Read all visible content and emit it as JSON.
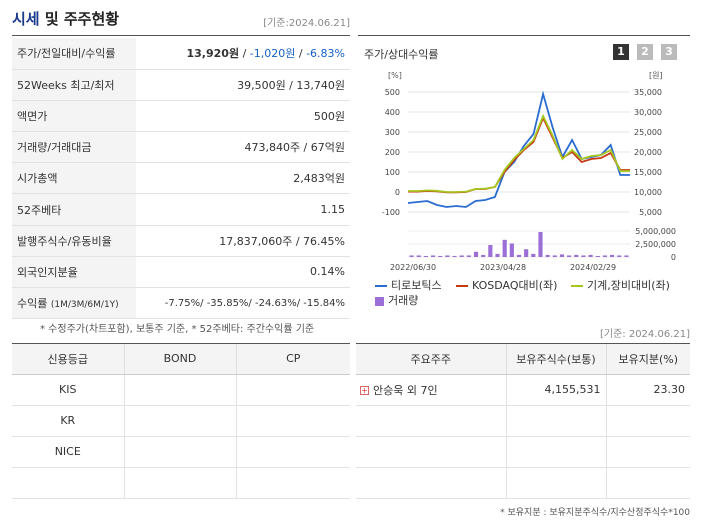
{
  "header": {
    "title_part1": "시세",
    "title_part2": "및 주주현황",
    "base_date": "[기준:2024.06.21]"
  },
  "info_rows": [
    {
      "label": "주가/전일대비/수익률",
      "v1": "13,920원",
      "v2": "-1,020원",
      "v3": "-6.83%"
    },
    {
      "label": "52Weeks 최고/최저",
      "value": "39,500원 / 13,740원"
    },
    {
      "label": "액면가",
      "value": "500원"
    },
    {
      "label": "거래량/거래대금",
      "value": "473,840주 / 67억원"
    },
    {
      "label": "시가총액",
      "value": "2,483억원"
    },
    {
      "label": "52주베타",
      "value": "1.15"
    },
    {
      "label": "발행주식수/유동비율",
      "value": "17,837,060주 / 76.45%"
    },
    {
      "label": "외국인지분율",
      "value": "0.14%"
    },
    {
      "label": "수익률",
      "label_sub": "(1M/3M/6M/1Y)",
      "value": "-7.75%/ -35.85%/ -24.63%/ -15.84%"
    }
  ],
  "info_note": "* 수정주가(차트포함), 보통주 기준, * 52주베타: 주간수익률 기준",
  "chart_panel": {
    "title": "주가/상대수익률",
    "tabs": [
      "1",
      "2",
      "3"
    ],
    "left_unit": "[%]",
    "right_unit": "[원]",
    "legend": {
      "s1": "티로보틱스",
      "s2": "KOSDAQ대비(좌)",
      "s3": "기계,장비대비(좌)",
      "s4": "거래량"
    }
  },
  "chart_data": {
    "type": "line",
    "x_ticks": [
      "2022/06/30",
      "2023/04/28",
      "2024/02/29"
    ],
    "left_axis": {
      "unit": "[%]",
      "ylim": [
        -100,
        500
      ],
      "ticks": [
        500,
        400,
        300,
        200,
        100,
        0,
        -100
      ]
    },
    "right_axis": {
      "unit": "[원]",
      "ylim": [
        5000,
        35000
      ],
      "ticks": [
        "35,000",
        "30,000",
        "25,000",
        "20,000",
        "15,000",
        "10,000",
        "5,000"
      ]
    },
    "volume_axis": {
      "ticks": [
        "5,000,000",
        "2,500,000",
        "0"
      ],
      "ylim": [
        0,
        5000000
      ]
    },
    "series": [
      {
        "name": "티로보틱스",
        "color": "#2a6cd0",
        "values": [
          -55,
          -50,
          -45,
          -65,
          -75,
          -70,
          -75,
          -45,
          -40,
          -25,
          100,
          150,
          230,
          290,
          490,
          320,
          175,
          260,
          165,
          175,
          185,
          235,
          85,
          85
        ]
      },
      {
        "name": "KOSDAQ대비(좌)",
        "color": "#c63a10",
        "values": [
          2,
          2,
          5,
          3,
          -2,
          -2,
          0,
          15,
          15,
          25,
          100,
          160,
          210,
          250,
          370,
          270,
          170,
          200,
          150,
          165,
          170,
          195,
          110,
          110
        ]
      },
      {
        "name": "기계,장비대비(좌)",
        "color": "#a6c720",
        "values": [
          5,
          5,
          8,
          6,
          0,
          0,
          2,
          15,
          17,
          25,
          110,
          170,
          215,
          260,
          380,
          280,
          165,
          210,
          165,
          180,
          185,
          210,
          105,
          105
        ]
      }
    ],
    "volume": {
      "name": "거래량",
      "color": "#9b6fd6",
      "values": [
        0.3,
        0.3,
        0.2,
        0.3,
        0.2,
        0.3,
        0.2,
        0.3,
        0.3,
        1.0,
        0.4,
        2.3,
        0.6,
        3.3,
        2.6,
        0.4,
        1.5,
        0.6,
        4.8,
        0.4,
        0.3,
        0.5,
        0.3,
        0.4,
        0.3,
        0.4,
        0.2,
        0.3,
        0.4,
        0.3,
        0.3
      ]
    }
  },
  "chart_base_date": "[기준: 2024.06.21]",
  "credit": {
    "headers": [
      "신용등급",
      "BOND",
      "CP"
    ],
    "rows": [
      "KIS",
      "KR",
      "NICE"
    ]
  },
  "holders": {
    "headers": [
      "주요주주",
      "보유주식수(보통)",
      "보유지분(%)"
    ],
    "rows": [
      {
        "name": "안승욱 외 7인",
        "shares": "4,155,531",
        "pct": "23.30"
      }
    ],
    "note": "* 보유지분 : 보유지분주식수/지수산정주식수*100"
  }
}
